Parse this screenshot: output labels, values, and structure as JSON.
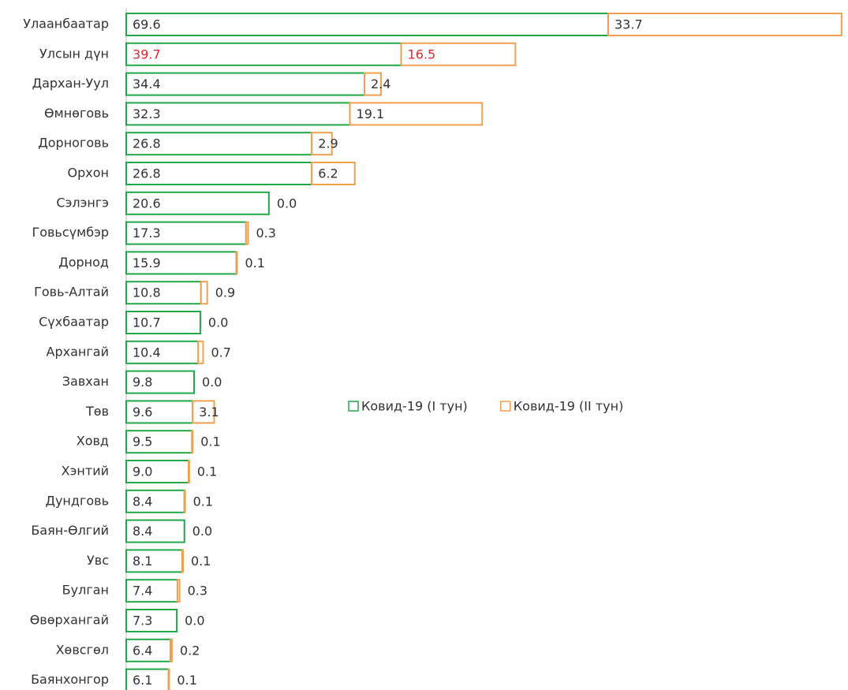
{
  "chart_data": {
    "type": "stacked_bar_h",
    "categories": [
      "Улаанбаатар",
      "Улсын дүн",
      "Дархан-Уул",
      "Өмнөговь",
      "Дорноговь",
      "Орхон",
      "Сэлэнгэ",
      "Говьсүмбэр",
      "Дорнод",
      "Говь-Алтай",
      "Сүхбаатар",
      "Архангай",
      "Завхан",
      "Төв",
      "Ховд",
      "Хэнтий",
      "Дундговь",
      "Баян-Өлгий",
      "Увс",
      "Булган",
      "Өвөрхангай",
      "Хөвсгөл",
      "Баянхонгор"
    ],
    "series": [
      {
        "name": "Ковид-19 (I тун)",
        "color": "#22a84a",
        "values": [
          69.6,
          39.7,
          34.4,
          32.3,
          26.8,
          26.8,
          20.6,
          17.3,
          15.9,
          10.8,
          10.7,
          10.4,
          9.8,
          9.6,
          9.5,
          9.0,
          8.4,
          8.4,
          8.1,
          7.4,
          7.3,
          6.4,
          6.1
        ],
        "value_labels": [
          "69.6",
          "39.7",
          "34.4",
          "32.3",
          "26.8",
          "26.8",
          "20.6",
          "17.3",
          "15.9",
          "10.8",
          "10.7",
          "10.4",
          "9.8",
          "9.6",
          "9.5",
          "9.0",
          "8.4",
          "8.4",
          "8.1",
          "7.4",
          "7.3",
          "6.4",
          "6.1"
        ]
      },
      {
        "name": "Ковид-19 (II тун)",
        "color": "#f0a050",
        "values": [
          33.7,
          16.5,
          2.4,
          19.1,
          2.9,
          6.2,
          0.0,
          0.3,
          0.1,
          0.9,
          0.0,
          0.7,
          0.0,
          3.1,
          0.1,
          0.1,
          0.1,
          0.0,
          0.1,
          0.3,
          0.0,
          0.2,
          0.1
        ],
        "value_labels": [
          "33.7",
          "16.5",
          "2.4",
          "19.1",
          "2.9",
          "6.2",
          "0.0",
          "0.3",
          "0.1",
          "0.9",
          "0.0",
          "0.7",
          "0.0",
          "3.1",
          "0.1",
          "0.1",
          "0.1",
          "0.0",
          "0.1",
          "0.3",
          "0.0",
          "0.2",
          "0.1"
        ]
      }
    ],
    "xlim": [
      0,
      104
    ],
    "label_highlight": {
      "index": 1,
      "color": "#e8262a"
    }
  }
}
